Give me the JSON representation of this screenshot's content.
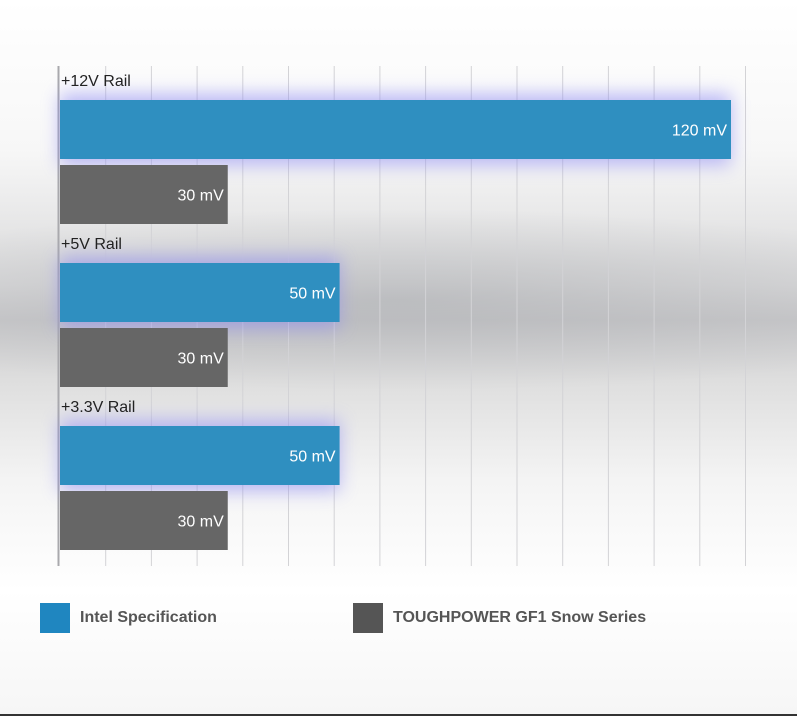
{
  "chart_data": {
    "type": "bar",
    "orientation": "horizontal",
    "categories": [
      "+12V Rail",
      "+5V Rail",
      "+3.3V Rail"
    ],
    "series": [
      {
        "name": "Intel Specification",
        "values": [
          120,
          50,
          50
        ],
        "labels": [
          "120 mV",
          "50 mV",
          "50 mV"
        ],
        "color": "#2f8fc0"
      },
      {
        "name": "TOUGHPOWER GF1 Snow Series",
        "values": [
          30,
          30,
          30
        ],
        "labels": [
          "30 mV",
          "30 mV",
          "30 mV"
        ],
        "color": "#666666"
      }
    ],
    "xlim": [
      0,
      120
    ],
    "grid": true,
    "legend_position": "bottom",
    "title": "",
    "xlabel": "",
    "ylabel": ""
  },
  "legend": {
    "items": [
      {
        "label": "Intel Specification",
        "color": "#1f86c0"
      },
      {
        "label": "TOUGHPOWER GF1 Snow Series",
        "color": "#555555"
      }
    ]
  }
}
